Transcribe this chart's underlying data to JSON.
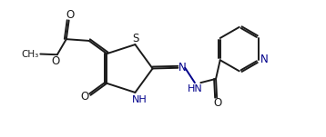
{
  "bg_color": "#ffffff",
  "line_color": "#1a1a1a",
  "heteroatom_color": "#00008b",
  "bond_lw": 1.4,
  "dbo": 0.055,
  "font_size": 8.5,
  "fig_width": 3.58,
  "fig_height": 1.51,
  "xlim": [
    0,
    10
  ],
  "ylim": [
    0,
    4.2
  ]
}
